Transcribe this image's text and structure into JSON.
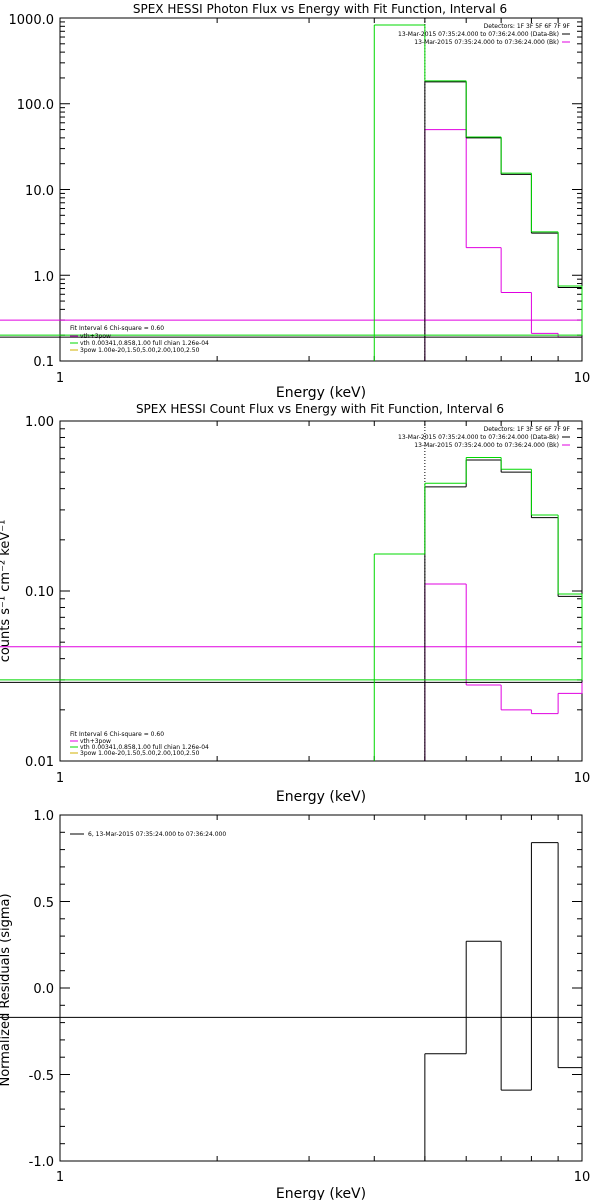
{
  "colors": {
    "background": "#ffffff",
    "axes": "#000000",
    "data": "#000000",
    "magenta": "#e000e0",
    "green": "#00d800",
    "yellow": "#d0b000"
  },
  "chart_data": [
    {
      "type": "line",
      "step": true,
      "title": "SPEX HESSI Photon Flux vs Energy with Fit Function, Interval 6",
      "xlabel": "Energy (keV)",
      "ylabel": "",
      "xscale": "log",
      "yscale": "log",
      "xlim": [
        1,
        10
      ],
      "ylim": [
        0.1,
        1000
      ],
      "xticks": [
        "1",
        "10"
      ],
      "yticks": [
        "0.1",
        "1.0",
        "10.0",
        "100.0",
        "1000.0"
      ],
      "vline_x": 5,
      "legend_topright": [
        "Detectors: 1F 3F 5F 6F 7F 9F",
        "13-Mar-2015 07:35:24.000 to 07:36:24.000 (Data-Bk)",
        "13-Mar-2015 07:35:24.000 to 07:36:24.000 (Bk)"
      ],
      "legend_bottomleft": [
        "Fit Interval 6   Chi-square = 0.60",
        "vth+3pow",
        "vth 0.00341,0.858,1.00  full chian 1.26e-04",
        "3pow 1.00e-20,1.50,5.00,2.00,100,2.50"
      ],
      "bin_edges": [
        4,
        5,
        6,
        7,
        8,
        9,
        10
      ],
      "series": [
        {
          "name": "13-Mar-2015 07:35:24.000 to 07:36:24.000 (Data-Bk)",
          "color": "black",
          "values": [
            null,
            180,
            40,
            15,
            3.1,
            0.72,
            0.19
          ]
        },
        {
          "name": "vth+3pow",
          "color": "green",
          "values": [
            830,
            185,
            41,
            15.5,
            3.2,
            0.75,
            0.2
          ]
        },
        {
          "name": "13-Mar-2015 07:35:24.000 to 07:36:24.000 (Bk)",
          "color": "magenta",
          "values": [
            null,
            50,
            2.1,
            0.63,
            0.21,
            0.19,
            0.3
          ]
        }
      ]
    },
    {
      "type": "line",
      "step": true,
      "title": "SPEX HESSI Count Flux vs Energy with Fit Function, Interval 6",
      "xlabel": "Energy (keV)",
      "ylabel": "counts s⁻¹ cm⁻² keV⁻¹",
      "xscale": "log",
      "yscale": "log",
      "xlim": [
        1,
        10
      ],
      "ylim": [
        0.01,
        1
      ],
      "xticks": [
        "1",
        "10"
      ],
      "yticks": [
        "0.01",
        "0.10",
        "1.00"
      ],
      "vline_x": 5,
      "legend_topright": [
        "Detectors: 1F 3F 5F 6F 7F 9F",
        "13-Mar-2015 07:35:24.000 to 07:36:24.000 (Data-Bk)",
        "13-Mar-2015 07:35:24.000 to 07:36:24.000 (Bk)"
      ],
      "legend_bottomleft": [
        "Fit Interval 6   Chi-square = 0.60",
        "vth+3pow",
        "vth 0.00341,0.858,1.00  full chian 1.26e-04",
        "3pow 1.00e-20,1.50,5.00,2.00,100,2.50"
      ],
      "bin_edges": [
        4,
        5,
        6,
        7,
        8,
        9,
        10
      ],
      "series": [
        {
          "name": "13-Mar-2015 07:35:24.000 to 07:36:24.000 (Data-Bk)",
          "color": "black",
          "values": [
            null,
            0.41,
            0.59,
            0.5,
            0.27,
            0.093,
            0.029
          ]
        },
        {
          "name": "vth+3pow",
          "color": "green",
          "values": [
            0.165,
            0.43,
            0.61,
            0.52,
            0.28,
            0.096,
            0.03
          ]
        },
        {
          "name": "13-Mar-2015 07:35:24.000 to 07:36:24.000 (Bk)",
          "color": "magenta",
          "values": [
            null,
            0.11,
            0.028,
            0.02,
            0.019,
            0.025,
            0.047
          ]
        }
      ]
    },
    {
      "type": "line",
      "step": true,
      "title": "",
      "xlabel": "Energy (keV)",
      "ylabel": "Normalized Residuals (sigma)",
      "xscale": "log",
      "yscale": "linear",
      "xlim": [
        1,
        10
      ],
      "ylim": [
        -1,
        1
      ],
      "xticks": [
        "1",
        "10"
      ],
      "yticks": [
        "-1.0",
        "-0.5",
        "0.0",
        "0.5",
        "1.0"
      ],
      "legend_topleft": [
        "6, 13-Mar-2015 07:35:24.000 to 07:36:24.000"
      ],
      "bin_edges": [
        5,
        6,
        7,
        8,
        9,
        10
      ],
      "series": [
        {
          "name": "6, 13-Mar-2015 07:35:24.000 to 07:36:24.000",
          "color": "black",
          "values": [
            -0.38,
            0.27,
            -0.59,
            0.84,
            -0.46,
            -0.17
          ]
        }
      ]
    }
  ]
}
